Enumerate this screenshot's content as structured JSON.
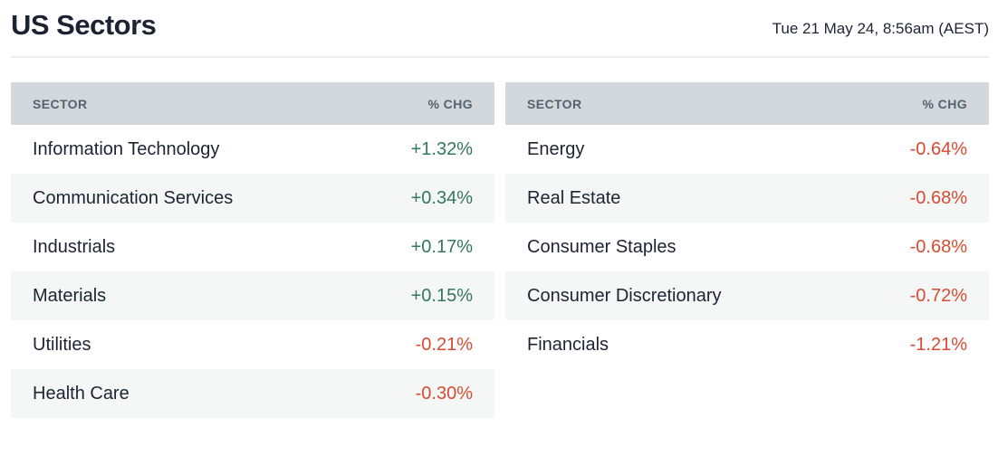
{
  "header": {
    "title": "US Sectors",
    "timestamp": "Tue 21 May 24, 8:56am (AEST)"
  },
  "chart_data": {
    "type": "table",
    "title": "US Sectors",
    "columns": [
      "SECTOR",
      "% CHG"
    ],
    "tables": [
      {
        "rows": [
          {
            "sector": "Information Technology",
            "chg": "+1.32%",
            "value": 1.32,
            "direction": "positive"
          },
          {
            "sector": "Communication Services",
            "chg": "+0.34%",
            "value": 0.34,
            "direction": "positive"
          },
          {
            "sector": "Industrials",
            "chg": "+0.17%",
            "value": 0.17,
            "direction": "positive"
          },
          {
            "sector": "Materials",
            "chg": "+0.15%",
            "value": 0.15,
            "direction": "positive"
          },
          {
            "sector": "Utilities",
            "chg": "-0.21%",
            "value": -0.21,
            "direction": "negative"
          },
          {
            "sector": "Health Care",
            "chg": "-0.30%",
            "value": -0.3,
            "direction": "negative"
          }
        ]
      },
      {
        "rows": [
          {
            "sector": "Energy",
            "chg": "-0.64%",
            "value": -0.64,
            "direction": "negative"
          },
          {
            "sector": "Real Estate",
            "chg": "-0.68%",
            "value": -0.68,
            "direction": "negative"
          },
          {
            "sector": "Consumer Staples",
            "chg": "-0.68%",
            "value": -0.68,
            "direction": "negative"
          },
          {
            "sector": "Consumer Discretionary",
            "chg": "-0.72%",
            "value": -0.72,
            "direction": "negative"
          },
          {
            "sector": "Financials",
            "chg": "-1.21%",
            "value": -1.21,
            "direction": "negative"
          }
        ]
      }
    ]
  },
  "colors": {
    "positive": "#32785a",
    "negative": "#d74b32",
    "text": "#1c2433",
    "header_bg": "#d3d8dd",
    "header_text": "#55616e",
    "alt_row_bg": "#f5f7f7",
    "divider": "#e7eef4"
  }
}
